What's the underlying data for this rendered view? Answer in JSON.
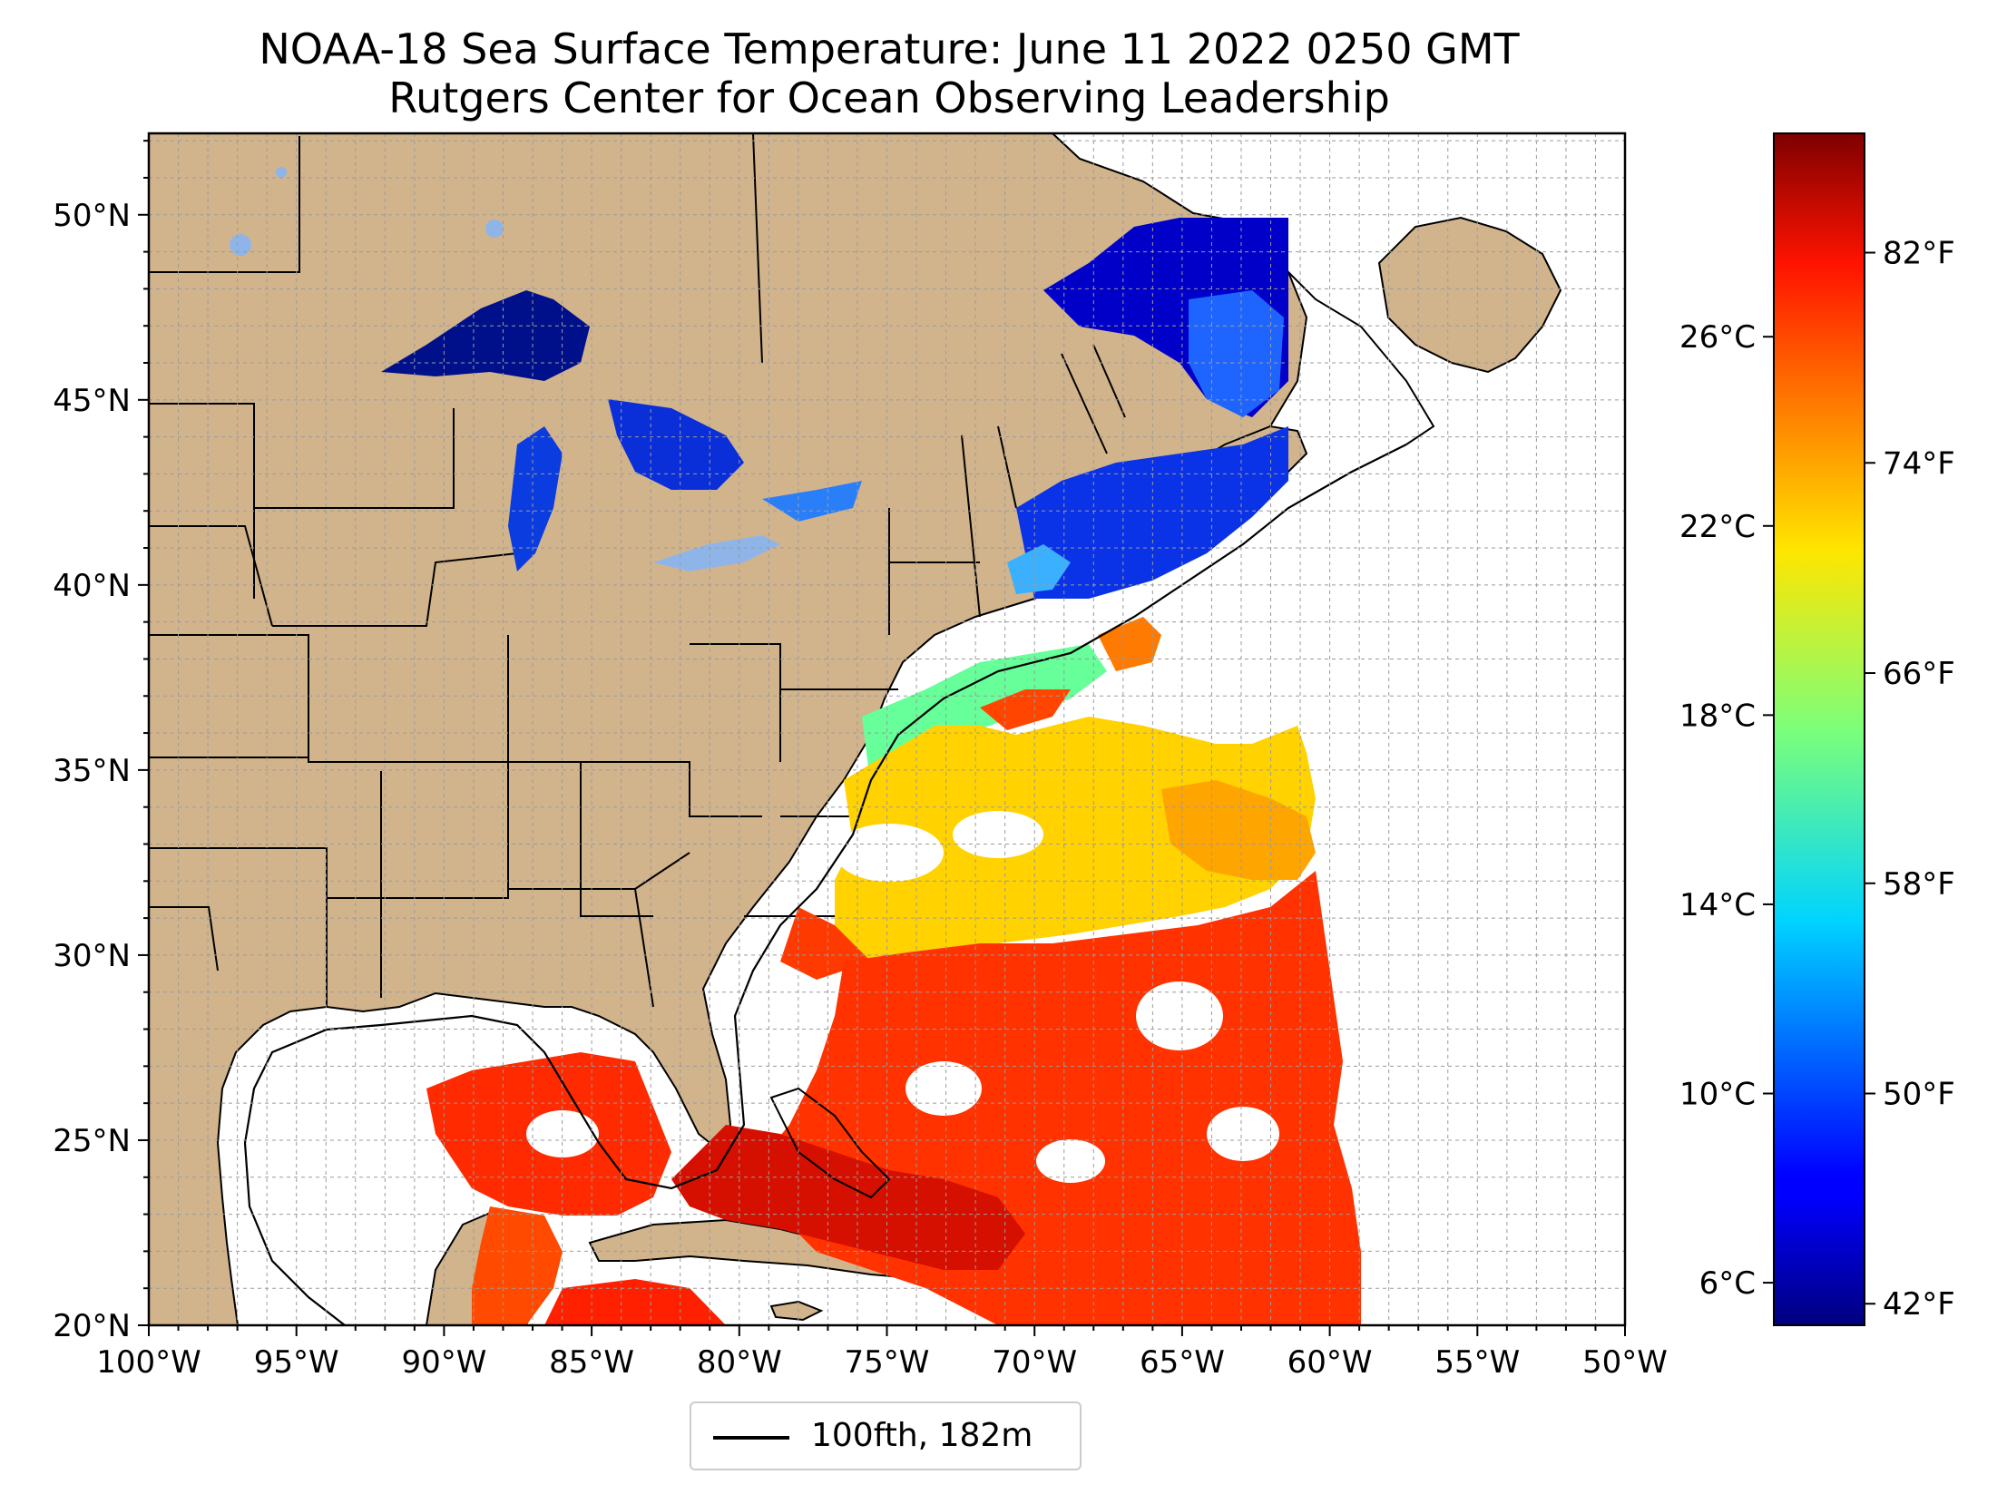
{
  "title": {
    "line1": "NOAA-18 Sea Surface Temperature: June 11 2022 0250 GMT",
    "line2": "Rutgers Center for Ocean Observing Leadership"
  },
  "map": {
    "lon_range": [
      -100,
      -50
    ],
    "lat_range": [
      20,
      52.2
    ],
    "grid": true,
    "lon_ticks": [
      "100°W",
      "95°W",
      "90°W",
      "85°W",
      "80°W",
      "75°W",
      "70°W",
      "65°W",
      "60°W",
      "55°W",
      "50°W"
    ],
    "lat_ticks": [
      "20°N",
      "25°N",
      "30°N",
      "35°N",
      "40°N",
      "45°N",
      "50°N"
    ],
    "land_color": "#d2b48c",
    "lake_color": "#8fb5e8"
  },
  "colorbar": {
    "colormap": "jet",
    "celsius_range": [
      5.1,
      30.3
    ],
    "celsius_ticks": [
      "6°C",
      "10°C",
      "14°C",
      "18°C",
      "22°C",
      "26°C"
    ],
    "fahrenheit_ticks": [
      "42°F",
      "50°F",
      "58°F",
      "66°F",
      "74°F",
      "82°F"
    ]
  },
  "legend": {
    "label": "100fth, 182m",
    "line_color": "#000000",
    "placement": "bottom-center"
  }
}
